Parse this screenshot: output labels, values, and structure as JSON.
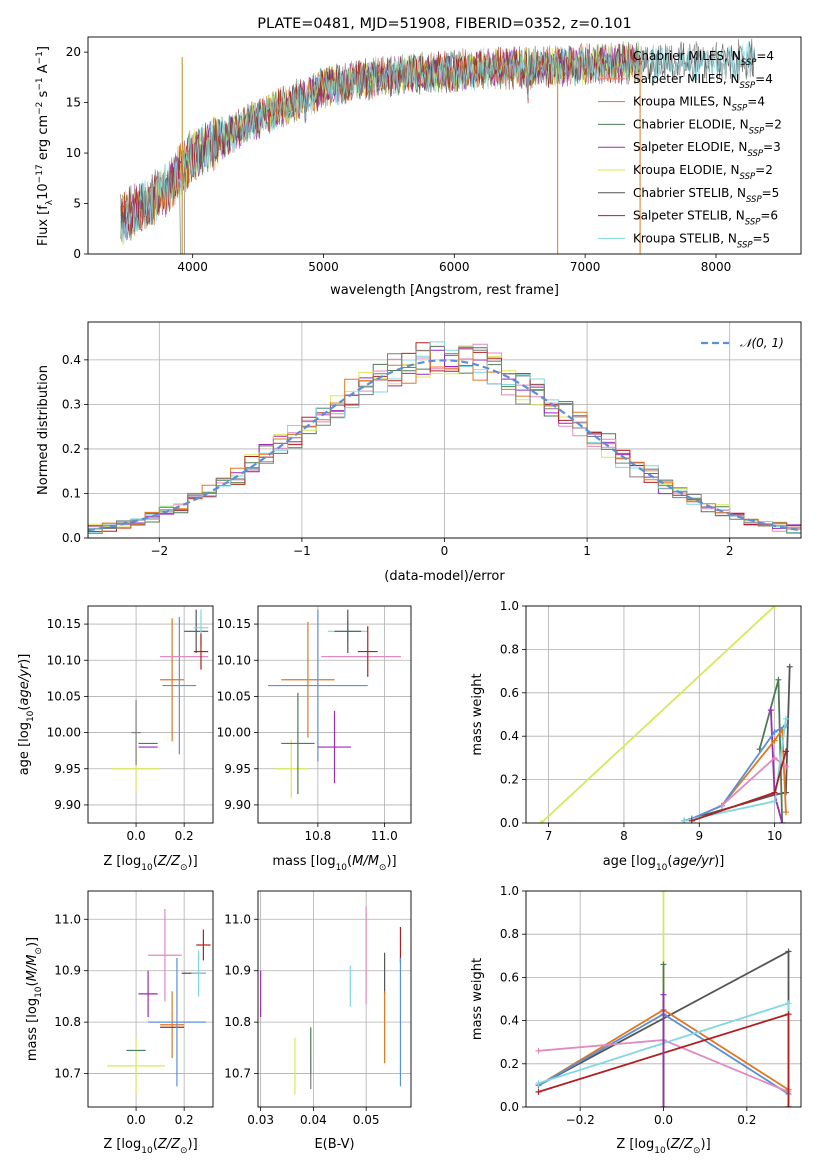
{
  "chart_data": [
    {
      "type": "line",
      "title": "PLATE=0481, MJD=51908, FIBERID=0352, z=0.101",
      "xlabel": "wavelength [Angstrom, rest frame]",
      "ylabel": "Flux [f_λ 10⁻¹⁷ erg cm⁻² s⁻¹ A⁻¹]",
      "xlim": [
        3200,
        8650
      ],
      "ylim": [
        0,
        21.5
      ],
      "xticks": [
        4000,
        5000,
        6000,
        7000,
        8000
      ],
      "yticks": [
        0,
        5,
        10,
        15,
        20
      ],
      "legend": "right",
      "spectrum_shape": {
        "x": [
          3450,
          3600,
          3800,
          4000,
          4300,
          4600,
          5000,
          5400,
          5800,
          6200,
          6600,
          7000,
          7400,
          8200
        ],
        "y": [
          3.5,
          4.5,
          6.5,
          9.8,
          12.0,
          14.0,
          16.5,
          17.5,
          18.0,
          18.3,
          18.5,
          18.8,
          19.0,
          19.2
        ]
      },
      "series": [
        {
          "base": "Chabrier MILES",
          "n": "4",
          "color": "#7f7f7f"
        },
        {
          "base": "Salpeter MILES",
          "n": "4",
          "color": "#e8836b"
        },
        {
          "base": "Kroupa MILES",
          "n": "4",
          "color": "#c8861c"
        },
        {
          "base": "Chabrier ELODIE",
          "n": "2",
          "color": "#4c7c54"
        },
        {
          "base": "Salpeter ELODIE",
          "n": "3",
          "color": "#9c2ab5"
        },
        {
          "base": "Kroupa ELODIE",
          "n": "2",
          "color": "#d8e85a"
        },
        {
          "base": "Chabrier STELIB",
          "n": "5",
          "color": "#555555"
        },
        {
          "base": "Salpeter STELIB",
          "n": "6",
          "color": "#b02020"
        },
        {
          "base": "Kroupa STELIB",
          "n": "5",
          "color": "#7fd8e0"
        }
      ]
    },
    {
      "type": "step",
      "title": "",
      "xlabel": "(data-model)/error",
      "ylabel": "Normed distribution",
      "xlim": [
        -2.5,
        2.5
      ],
      "ylim": [
        0,
        0.485
      ],
      "xticks": [
        -2,
        -1,
        0,
        1,
        2
      ],
      "yticks": [
        0.0,
        0.1,
        0.2,
        0.3,
        0.4
      ],
      "grid": true,
      "legend": "top-right",
      "reference_label": "𝒩(0, 1)",
      "reference_color": "#5b8fd8",
      "bin_width": 0.1
    },
    {
      "type": "errorbar",
      "xlabel": "Z [log₁₀(Z/Z⊙)]",
      "ylabel": "age  [log₁₀(age/yr)]",
      "xlim": [
        -0.2,
        0.32
      ],
      "ylim": [
        9.875,
        10.175
      ],
      "xticks": [
        0.0,
        0.2
      ],
      "yticks": [
        9.9,
        9.95,
        10.0,
        10.05,
        10.1,
        10.15
      ],
      "grid": true,
      "points": [
        {
          "x": 0.0,
          "y": 9.95,
          "xe": 0.1,
          "ye": 0.03,
          "c": "#d8e85a"
        },
        {
          "x": 0.0,
          "y": 10.0,
          "xe": 0.02,
          "ye": 0.045,
          "c": "#7f7f7f"
        },
        {
          "x": 0.05,
          "y": 9.985,
          "xe": 0.04,
          "ye": 0.0,
          "c": "#4c7c54"
        },
        {
          "x": 0.05,
          "y": 9.98,
          "xe": 0.04,
          "ye": 0.0,
          "c": "#9c2ab5"
        },
        {
          "x": 0.15,
          "y": 10.073,
          "xe": 0.05,
          "ye": 0.085,
          "c": "#e07820"
        },
        {
          "x": 0.18,
          "y": 10.065,
          "xe": 0.07,
          "ye": 0.095,
          "c": "#5b8fd8"
        },
        {
          "x": 0.2,
          "y": 10.105,
          "xe": 0.1,
          "ye": 0.0,
          "c": "#e08ac0"
        },
        {
          "x": 0.25,
          "y": 10.14,
          "xe": 0.05,
          "ye": 0.03,
          "c": "#555555"
        },
        {
          "x": 0.27,
          "y": 10.145,
          "xe": 0.03,
          "ye": 0.025,
          "c": "#7fd8e0"
        },
        {
          "x": 0.27,
          "y": 10.112,
          "xe": 0.03,
          "ye": 0.025,
          "c": "#b02020"
        }
      ]
    },
    {
      "type": "errorbar",
      "xlabel": "mass [log₁₀(M/M⊙)]",
      "ylabel": "",
      "xlim": [
        10.62,
        11.08
      ],
      "ylim": [
        9.875,
        10.175
      ],
      "xticks": [
        10.8,
        11.0
      ],
      "yticks": [
        9.9,
        9.95,
        10.0,
        10.05,
        10.1,
        10.15
      ],
      "grid": true,
      "points": [
        {
          "x": 10.72,
          "y": 9.95,
          "xe": 0.05,
          "ye": 0.04,
          "c": "#d8e85a"
        },
        {
          "x": 10.74,
          "y": 9.985,
          "xe": 0.05,
          "ye": 0.07,
          "c": "#4c7c54"
        },
        {
          "x": 10.77,
          "y": 10.073,
          "xe": 0.08,
          "ye": 0.08,
          "c": "#e07820"
        },
        {
          "x": 10.8,
          "y": 10.065,
          "xe": 0.15,
          "ye": 0.105,
          "c": "#5b8fd8"
        },
        {
          "x": 10.85,
          "y": 9.98,
          "xe": 0.05,
          "ye": 0.05,
          "c": "#9c2ab5"
        },
        {
          "x": 10.89,
          "y": 10.14,
          "xe": 0.06,
          "ye": 0.015,
          "c": "#7fd8e0"
        },
        {
          "x": 10.89,
          "y": 10.14,
          "xe": 0.04,
          "ye": 0.03,
          "c": "#555555"
        },
        {
          "x": 10.93,
          "y": 10.105,
          "xe": 0.12,
          "ye": 0.0,
          "c": "#e08ac0"
        },
        {
          "x": 10.95,
          "y": 10.112,
          "xe": 0.03,
          "ye": 0.035,
          "c": "#b02020"
        }
      ]
    },
    {
      "type": "line",
      "xlabel": "age  [log₁₀(age/yr)]",
      "ylabel": "mass weight",
      "xlim": [
        6.7,
        10.35
      ],
      "ylim": [
        0,
        1.0
      ],
      "xticks": [
        7,
        8,
        9,
        10
      ],
      "yticks": [
        0.0,
        0.2,
        0.4,
        0.6,
        0.8,
        1.0
      ],
      "grid": true,
      "series": [
        {
          "c": "#d8e85a",
          "x": [
            6.9,
            10.0
          ],
          "y": [
            0.0,
            1.0
          ]
        },
        {
          "c": "#555555",
          "x": [
            8.8,
            10.0,
            10.15,
            10.2
          ],
          "y": [
            0.01,
            0.13,
            0.14,
            0.72
          ]
        },
        {
          "c": "#4c7c54",
          "x": [
            9.8,
            10.05,
            10.1
          ],
          "y": [
            0.34,
            0.66,
            0.0
          ]
        },
        {
          "c": "#9c2ab5",
          "x": [
            9.95,
            10.0,
            10.1
          ],
          "y": [
            0.52,
            0.13,
            0.0
          ]
        },
        {
          "c": "#e07820",
          "x": [
            8.9,
            9.3,
            10.0,
            10.1,
            10.15
          ],
          "y": [
            0.02,
            0.08,
            0.38,
            0.43,
            0.05
          ]
        },
        {
          "c": "#5b8fd8",
          "x": [
            8.9,
            9.3,
            10.0,
            10.15
          ],
          "y": [
            0.02,
            0.08,
            0.42,
            0.45
          ]
        },
        {
          "c": "#e08ac0",
          "x": [
            9.3,
            10.0,
            10.15
          ],
          "y": [
            0.08,
            0.3,
            0.26
          ]
        },
        {
          "c": "#7fd8e0",
          "x": [
            8.8,
            10.0,
            10.15
          ],
          "y": [
            0.01,
            0.1,
            0.48
          ]
        },
        {
          "c": "#b02020",
          "x": [
            8.9,
            10.0,
            10.15
          ],
          "y": [
            0.01,
            0.14,
            0.33
          ]
        }
      ]
    },
    {
      "type": "errorbar",
      "xlabel": "Z [log₁₀(Z/Z⊙)]",
      "ylabel": "mass [log₁₀(M/M⊙)]",
      "xlim": [
        -0.2,
        0.32
      ],
      "ylim": [
        10.635,
        11.055
      ],
      "xticks": [
        0.0,
        0.2
      ],
      "yticks": [
        10.7,
        10.8,
        10.9,
        11.0
      ],
      "grid": true,
      "points": [
        {
          "x": 0.0,
          "y": 10.715,
          "xe": 0.12,
          "ye": 0.055,
          "c": "#d8e85a"
        },
        {
          "x": 0.0,
          "y": 10.745,
          "xe": 0.04,
          "ye": 0.0,
          "c": "#4c7c54"
        },
        {
          "x": 0.05,
          "y": 10.855,
          "xe": 0.04,
          "ye": 0.045,
          "c": "#9c2ab5"
        },
        {
          "x": 0.15,
          "y": 10.795,
          "xe": 0.05,
          "ye": 0.065,
          "c": "#e07820"
        },
        {
          "x": 0.15,
          "y": 10.79,
          "xe": 0.05,
          "ye": 0.0,
          "c": "#b02020"
        },
        {
          "x": 0.17,
          "y": 10.8,
          "xe": 0.12,
          "ye": 0.125,
          "c": "#5b8fd8"
        },
        {
          "x": 0.12,
          "y": 10.93,
          "xe": 0.07,
          "ye": 0.09,
          "c": "#e08ac0"
        },
        {
          "x": 0.24,
          "y": 10.895,
          "xe": 0.05,
          "ye": 0.0,
          "c": "#555555"
        },
        {
          "x": 0.26,
          "y": 10.895,
          "xe": 0.03,
          "ye": 0.045,
          "c": "#7fd8e0"
        },
        {
          "x": 0.28,
          "y": 10.95,
          "xe": 0.03,
          "ye": 0.03,
          "c": "#b02020"
        }
      ]
    },
    {
      "type": "errorbar",
      "xlabel": "E(B-V)",
      "ylabel": "",
      "xlim": [
        0.0295,
        0.0585
      ],
      "ylim": [
        10.635,
        11.055
      ],
      "xticks": [
        0.03,
        0.04,
        0.05
      ],
      "yticks": [
        10.7,
        10.8,
        10.9,
        11.0
      ],
      "grid": true,
      "points": [
        {
          "x": 0.03,
          "y": 10.855,
          "xe": 0,
          "ye": 0.045,
          "c": "#9c2ab5"
        },
        {
          "x": 0.0365,
          "y": 10.715,
          "xe": 0,
          "ye": 0.055,
          "c": "#d8e85a"
        },
        {
          "x": 0.0395,
          "y": 10.745,
          "xe": 0,
          "ye": 0.045,
          "c": "#4c7c54"
        },
        {
          "x": 0.0395,
          "y": 10.7,
          "xe": 0,
          "ye": 0.03,
          "c": "#7f7f7f"
        },
        {
          "x": 0.047,
          "y": 10.87,
          "xe": 0,
          "ye": 0.04,
          "c": "#7fd8e0"
        },
        {
          "x": 0.05,
          "y": 10.93,
          "xe": 0,
          "ye": 0.095,
          "c": "#e08ac0"
        },
        {
          "x": 0.0535,
          "y": 10.895,
          "xe": 0,
          "ye": 0.04,
          "c": "#555555"
        },
        {
          "x": 0.0535,
          "y": 10.79,
          "xe": 0,
          "ye": 0.07,
          "c": "#e07820"
        },
        {
          "x": 0.0565,
          "y": 10.95,
          "xe": 0,
          "ye": 0.035,
          "c": "#b02020"
        },
        {
          "x": 0.0565,
          "y": 10.8,
          "xe": 0,
          "ye": 0.125,
          "c": "#5b8fd8"
        }
      ]
    },
    {
      "type": "line",
      "xlabel": "Z [log₁₀(Z/Z⊙)]",
      "ylabel": "mass weight",
      "xlim": [
        -0.33,
        0.33
      ],
      "ylim": [
        0,
        1.0
      ],
      "xticks": [
        -0.2,
        0.0,
        0.2
      ],
      "yticks": [
        0.0,
        0.2,
        0.4,
        0.6,
        0.8,
        1.0
      ],
      "grid": true,
      "series": [
        {
          "c": "#d8e85a",
          "x": [
            0.0,
            0.0
          ],
          "y": [
            0.0,
            1.0
          ]
        },
        {
          "c": "#555555",
          "x": [
            -0.3,
            0.3,
            0.3
          ],
          "y": [
            0.1,
            0.72,
            0.0
          ]
        },
        {
          "c": "#e07820",
          "x": [
            -0.3,
            0.0,
            0.3
          ],
          "y": [
            0.1,
            0.45,
            0.08
          ]
        },
        {
          "c": "#5b8fd8",
          "x": [
            -0.3,
            0.0,
            0.3
          ],
          "y": [
            0.1,
            0.43,
            0.06
          ]
        },
        {
          "c": "#e08ac0",
          "x": [
            -0.3,
            0.0,
            0.3
          ],
          "y": [
            0.26,
            0.31,
            0.07
          ]
        },
        {
          "c": "#7fd8e0",
          "x": [
            -0.3,
            0.3,
            0.3
          ],
          "y": [
            0.11,
            0.48,
            0.0
          ]
        },
        {
          "c": "#b02020",
          "x": [
            -0.3,
            0.3,
            0.3
          ],
          "y": [
            0.07,
            0.43,
            0.0
          ]
        },
        {
          "c": "#4c7c54",
          "x": [
            0.0,
            0.0
          ],
          "y": [
            0.66,
            0.0
          ]
        },
        {
          "c": "#9c2ab5",
          "x": [
            0.0,
            0.0
          ],
          "y": [
            0.52,
            0.0
          ]
        }
      ]
    }
  ]
}
